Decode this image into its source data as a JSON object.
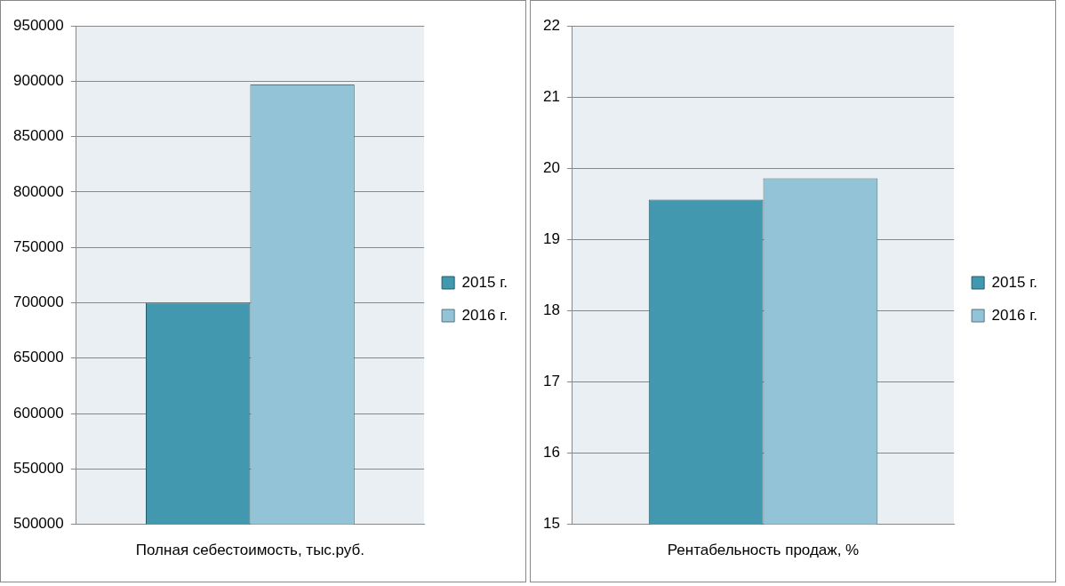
{
  "chart_data": [
    {
      "type": "bar",
      "categories": [
        "Полная себестоимость, тыс.руб."
      ],
      "series": [
        {
          "name": "2015 г.",
          "color": "#4198af",
          "values": [
            700000
          ]
        },
        {
          "name": "2016 г.",
          "color": "#93c3d6",
          "values": [
            897000
          ]
        }
      ],
      "ylim": [
        500000,
        950000
      ],
      "yticks": [
        500000,
        550000,
        600000,
        650000,
        700000,
        750000,
        800000,
        850000,
        900000,
        950000
      ],
      "grid": "y",
      "legend": "right"
    },
    {
      "type": "bar",
      "categories": [
        "Рентабельность продаж, %"
      ],
      "series": [
        {
          "name": "2015 г.",
          "color": "#4198af",
          "values": [
            19.56
          ]
        },
        {
          "name": "2016 г.",
          "color": "#93c3d6",
          "values": [
            19.86
          ]
        }
      ],
      "ylim": [
        15,
        22
      ],
      "yticks": [
        15,
        16,
        17,
        18,
        19,
        20,
        21,
        22
      ],
      "grid": "y",
      "legend": "right"
    }
  ]
}
